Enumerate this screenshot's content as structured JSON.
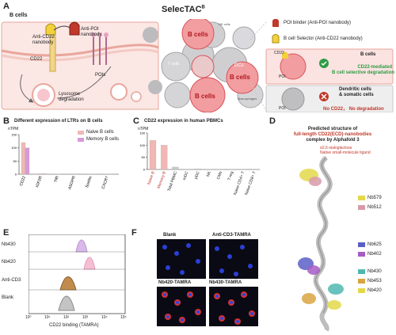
{
  "panelA": {
    "label": "A",
    "title_b_cells": "B cells",
    "selectac_title": "SelecTAC",
    "selectac_sup": "B",
    "anti_cd22": "Anti-CD22\nnanobody",
    "anti_poi": "Anti-POI\nnanobody",
    "cd22": "CD22",
    "pois": "POIs",
    "lysosome": "Lysosome\ndegradation",
    "cell_b": "B cells",
    "cell_t": "T\ncells",
    "cell_dc": "DCs",
    "cell_nk": "NK cells",
    "cell_mac": "Macrophages",
    "legend_poi_binder": "POI binder (Anti-POI nanobody)",
    "legend_b_selector": "B cell Selector (Anti-CD22 nanobody)",
    "box1_title": "B cells",
    "box1_cd22": "CD22",
    "box1_poi": "POI",
    "box1_result": "CD22-mediated\nB cell selective degradation",
    "box2_title": "Dendritic cells\n& somatic cells",
    "box2_poi": "POI",
    "box2_result": "No CD22， No degradation"
  },
  "panelB": {
    "label": "B",
    "title": "Different expression of LTRs on B cells",
    "unit": "nTPM",
    "legend": [
      "Naive B cells",
      "Memory B cells"
    ]
  },
  "panelC": {
    "label": "C",
    "title": "CD22 expression in human PBMCs",
    "unit": "nTPM"
  },
  "panelD": {
    "label": "D",
    "title_line1": "Predicted structure of",
    "title_line2": "full-length CD22(ECD)-nanobodies",
    "title_line3": "complex by Alphafold 3",
    "ligand_line1": "α2,6-sialoglactose",
    "ligand_line2": "Native small-molecule ligand",
    "legend": [
      {
        "name": "Nb579",
        "color": "#e3d84a"
      },
      {
        "name": "Nb512",
        "color": "#d89aa8"
      },
      {
        "name": "Nb625",
        "color": "#5a5fc8"
      },
      {
        "name": "Nb402",
        "color": "#a65cc4"
      },
      {
        "name": "Nb430",
        "color": "#4fb8b0"
      },
      {
        "name": "Nb453",
        "color": "#d9a441"
      },
      {
        "name": "Nb420",
        "color": "#e3d84a"
      }
    ]
  },
  "panelE": {
    "label": "E",
    "xlabel": "CD22 binding (TAMRA)",
    "rows": [
      "Nb430",
      "Nb420",
      "Anti-CD3",
      "Blank"
    ],
    "ticks": [
      "10⁰",
      "10¹",
      "10²",
      "10³",
      "10⁴",
      "10⁵"
    ]
  },
  "panelF": {
    "label": "F",
    "images": [
      "Blank",
      "Anti-CD3-TAMRA",
      "Nb420-TAMRA",
      "Nb430-TAMRA"
    ]
  },
  "chart_data": [
    {
      "type": "bar",
      "title": "Different expression of LTRs on B cells",
      "ylabel": "nTPM",
      "categories": [
        "CD22",
        "IGF2R",
        "TfR",
        "ASGPR",
        "Sortilin",
        "CXCR7"
      ],
      "series": [
        {
          "name": "Naive B cells",
          "values": [
            120,
            2,
            1,
            0,
            1,
            1
          ]
        },
        {
          "name": "Memory B cells",
          "values": [
            100,
            2,
            1,
            0,
            1,
            1
          ]
        }
      ],
      "ylim": [
        0,
        150
      ]
    },
    {
      "type": "bar",
      "title": "CD22 expression in human PBMCs",
      "ylabel": "nTPM",
      "categories": [
        "Naive B",
        "Memory B",
        "Total PBMC",
        "mDC",
        "pDC",
        "NK",
        "CMo",
        "T-reg",
        "Naive CD4+ T",
        "Naive CD8+ T"
      ],
      "values": [
        120,
        100,
        10,
        1,
        3,
        1,
        1,
        1,
        1,
        1
      ],
      "highlight": [
        0,
        1
      ],
      "ylim": [
        0,
        150
      ]
    }
  ]
}
